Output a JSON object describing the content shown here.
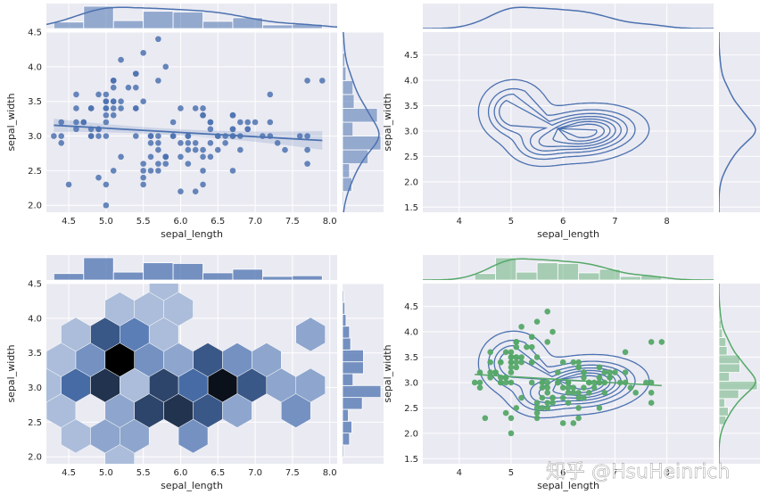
{
  "watermark": "知乎 @HsuHeinrich",
  "colors": {
    "panel_bg": "#eaeaf2",
    "grid": "#ffffff",
    "blue": "#4c72b0",
    "green": "#55a868",
    "hex_light": "#d3dcec",
    "hex_dark": "#000000"
  },
  "chart_data": [
    {
      "type": "scatter",
      "subtype": "jointplot-reg",
      "xlabel": "sepal_length",
      "ylabel": "sepal_width",
      "xlim": [
        4.2,
        8.1
      ],
      "ylim": [
        1.9,
        4.5
      ],
      "xticks": [
        "4.5",
        "5.0",
        "5.5",
        "6.0",
        "6.5",
        "7.0",
        "7.5",
        "8.0"
      ],
      "yticks": [
        "2.0",
        "2.5",
        "3.0",
        "3.5",
        "4.0",
        "4.5"
      ],
      "regression": {
        "slope": -0.061,
        "intercept": 3.418
      },
      "points": [
        [
          5.1,
          3.5
        ],
        [
          4.9,
          3.0
        ],
        [
          4.7,
          3.2
        ],
        [
          4.6,
          3.1
        ],
        [
          5.0,
          3.6
        ],
        [
          5.4,
          3.9
        ],
        [
          4.6,
          3.4
        ],
        [
          5.0,
          3.4
        ],
        [
          4.4,
          2.9
        ],
        [
          4.9,
          3.1
        ],
        [
          5.4,
          3.7
        ],
        [
          4.8,
          3.4
        ],
        [
          4.8,
          3.0
        ],
        [
          4.3,
          3.0
        ],
        [
          5.8,
          4.0
        ],
        [
          5.7,
          4.4
        ],
        [
          5.4,
          3.9
        ],
        [
          5.1,
          3.5
        ],
        [
          5.7,
          3.8
        ],
        [
          5.1,
          3.8
        ],
        [
          5.4,
          3.4
        ],
        [
          5.1,
          3.7
        ],
        [
          4.6,
          3.6
        ],
        [
          5.1,
          3.3
        ],
        [
          4.8,
          3.4
        ],
        [
          5.0,
          3.0
        ],
        [
          5.0,
          3.4
        ],
        [
          5.2,
          3.5
        ],
        [
          5.2,
          3.4
        ],
        [
          4.7,
          3.2
        ],
        [
          4.8,
          3.1
        ],
        [
          5.4,
          3.4
        ],
        [
          5.2,
          4.1
        ],
        [
          5.5,
          4.2
        ],
        [
          4.9,
          3.1
        ],
        [
          5.0,
          3.2
        ],
        [
          5.5,
          3.5
        ],
        [
          4.9,
          3.6
        ],
        [
          4.4,
          3.0
        ],
        [
          5.1,
          3.4
        ],
        [
          5.0,
          3.5
        ],
        [
          4.5,
          2.3
        ],
        [
          4.4,
          3.2
        ],
        [
          5.0,
          3.5
        ],
        [
          5.1,
          3.8
        ],
        [
          4.8,
          3.0
        ],
        [
          5.1,
          3.8
        ],
        [
          4.6,
          3.2
        ],
        [
          5.3,
          3.7
        ],
        [
          5.0,
          3.3
        ],
        [
          7.0,
          3.2
        ],
        [
          6.4,
          3.2
        ],
        [
          6.9,
          3.1
        ],
        [
          5.5,
          2.3
        ],
        [
          6.5,
          2.8
        ],
        [
          5.7,
          2.8
        ],
        [
          6.3,
          3.3
        ],
        [
          4.9,
          2.4
        ],
        [
          6.6,
          2.9
        ],
        [
          5.2,
          2.7
        ],
        [
          5.0,
          2.0
        ],
        [
          5.9,
          3.0
        ],
        [
          6.0,
          2.2
        ],
        [
          6.1,
          2.9
        ],
        [
          5.6,
          2.9
        ],
        [
          6.7,
          3.1
        ],
        [
          5.6,
          3.0
        ],
        [
          5.8,
          2.7
        ],
        [
          6.2,
          2.2
        ],
        [
          5.6,
          2.5
        ],
        [
          5.9,
          3.2
        ],
        [
          6.1,
          2.8
        ],
        [
          6.3,
          2.5
        ],
        [
          6.4,
          2.9
        ],
        [
          6.6,
          3.0
        ],
        [
          6.8,
          2.8
        ],
        [
          6.7,
          3.0
        ],
        [
          6.0,
          2.9
        ],
        [
          5.7,
          2.6
        ],
        [
          5.5,
          2.4
        ],
        [
          5.8,
          2.7
        ],
        [
          6.0,
          2.7
        ],
        [
          5.4,
          3.0
        ],
        [
          6.0,
          3.4
        ],
        [
          6.7,
          3.1
        ],
        [
          6.3,
          2.3
        ],
        [
          5.6,
          3.0
        ],
        [
          5.5,
          2.5
        ],
        [
          5.5,
          2.6
        ],
        [
          6.1,
          3.0
        ],
        [
          5.8,
          2.6
        ],
        [
          5.0,
          2.3
        ],
        [
          5.6,
          2.7
        ],
        [
          5.7,
          3.0
        ],
        [
          5.7,
          2.9
        ],
        [
          6.2,
          2.9
        ],
        [
          5.1,
          2.5
        ],
        [
          6.3,
          3.3
        ],
        [
          5.8,
          2.7
        ],
        [
          7.1,
          3.0
        ],
        [
          6.5,
          3.0
        ],
        [
          7.6,
          3.0
        ],
        [
          7.3,
          2.9
        ],
        [
          6.7,
          2.5
        ],
        [
          7.2,
          3.6
        ],
        [
          6.4,
          2.7
        ],
        [
          6.8,
          3.0
        ],
        [
          5.7,
          2.5
        ],
        [
          6.4,
          3.2
        ],
        [
          7.7,
          3.8
        ],
        [
          7.7,
          2.6
        ],
        [
          6.9,
          3.2
        ],
        [
          7.7,
          2.8
        ],
        [
          6.3,
          2.7
        ],
        [
          6.7,
          3.3
        ],
        [
          7.2,
          3.2
        ],
        [
          6.2,
          2.8
        ],
        [
          6.1,
          3.0
        ],
        [
          7.2,
          3.0
        ],
        [
          7.4,
          2.8
        ],
        [
          7.9,
          3.8
        ],
        [
          6.3,
          2.8
        ],
        [
          6.1,
          2.6
        ],
        [
          7.7,
          3.0
        ],
        [
          6.3,
          3.4
        ],
        [
          6.4,
          3.1
        ],
        [
          6.9,
          3.1
        ],
        [
          6.7,
          3.3
        ],
        [
          5.8,
          2.7
        ],
        [
          6.8,
          3.2
        ],
        [
          6.7,
          3.0
        ],
        [
          6.5,
          3.0
        ],
        [
          6.2,
          3.4
        ],
        [
          5.9,
          3.0
        ]
      ]
    },
    {
      "type": "line",
      "subtype": "jointplot-kde-contour",
      "xlabel": "sepal_length",
      "ylabel": "sepal_width",
      "xlim": [
        3.3,
        8.9
      ],
      "ylim": [
        1.4,
        4.95
      ],
      "xticks": [
        "4",
        "5",
        "6",
        "7",
        "8"
      ],
      "yticks": [
        "1.5",
        "2.0",
        "2.5",
        "3.0",
        "3.5",
        "4.0",
        "4.5"
      ],
      "contour_levels": 8
    },
    {
      "type": "heatmap",
      "subtype": "jointplot-hexbin",
      "xlabel": "sepal_length",
      "ylabel": "sepal_width",
      "xlim": [
        4.2,
        8.1
      ],
      "ylim": [
        1.9,
        4.5
      ],
      "xticks": [
        "4.5",
        "5.0",
        "5.5",
        "6.0",
        "6.5",
        "7.0",
        "7.5",
        "8.0"
      ],
      "yticks": [
        "2.0",
        "2.5",
        "3.0",
        "3.5",
        "4.0",
        "4.5"
      ]
    },
    {
      "type": "scatter",
      "subtype": "jointplot-scatter-kde",
      "xlabel": "sepal_length",
      "ylabel": "sepal_width",
      "xlim": [
        3.3,
        8.9
      ],
      "ylim": [
        1.4,
        4.95
      ],
      "xticks": [
        "4",
        "5",
        "6",
        "7",
        "8"
      ],
      "yticks": [
        "1.5",
        "2.0",
        "2.5",
        "3.0",
        "3.5",
        "4.0",
        "4.5"
      ]
    }
  ]
}
